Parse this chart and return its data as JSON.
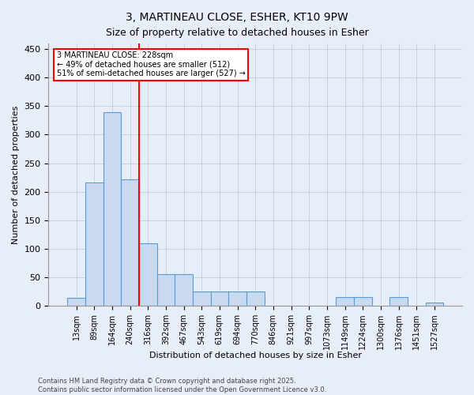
{
  "title": "3, MARTINEAU CLOSE, ESHER, KT10 9PW",
  "subtitle": "Size of property relative to detached houses in Esher",
  "xlabel": "Distribution of detached houses by size in Esher",
  "ylabel": "Number of detached properties",
  "categories": [
    "13sqm",
    "89sqm",
    "164sqm",
    "240sqm",
    "316sqm",
    "392sqm",
    "467sqm",
    "543sqm",
    "619sqm",
    "694sqm",
    "770sqm",
    "846sqm",
    "921sqm",
    "997sqm",
    "1073sqm",
    "1149sqm",
    "1224sqm",
    "1300sqm",
    "1376sqm",
    "1451sqm",
    "1527sqm"
  ],
  "values": [
    14,
    216,
    340,
    222,
    110,
    55,
    55,
    25,
    25,
    25,
    25,
    0,
    0,
    0,
    0,
    15,
    15,
    0,
    15,
    0,
    5
  ],
  "bar_color": "#c8d9f0",
  "bar_edge_color": "#5b9bd5",
  "vline_color": "red",
  "vline_pos": 3.5,
  "annotation_text": "3 MARTINEAU CLOSE: 228sqm\n← 49% of detached houses are smaller (512)\n51% of semi-detached houses are larger (527) →",
  "annotation_box_color": "white",
  "annotation_box_edge": "red",
  "footer": "Contains HM Land Registry data © Crown copyright and database right 2025.\nContains public sector information licensed under the Open Government Licence v3.0.",
  "ylim": [
    0,
    460
  ],
  "yticks": [
    0,
    50,
    100,
    150,
    200,
    250,
    300,
    350,
    400,
    450
  ],
  "background_color": "#e8eef8",
  "grid_color": "#c0cde0",
  "title_fontsize": 10,
  "subtitle_fontsize": 9,
  "tick_fontsize": 7,
  "ylabel_fontsize": 8,
  "xlabel_fontsize": 8,
  "footer_fontsize": 6,
  "annot_fontsize": 7
}
